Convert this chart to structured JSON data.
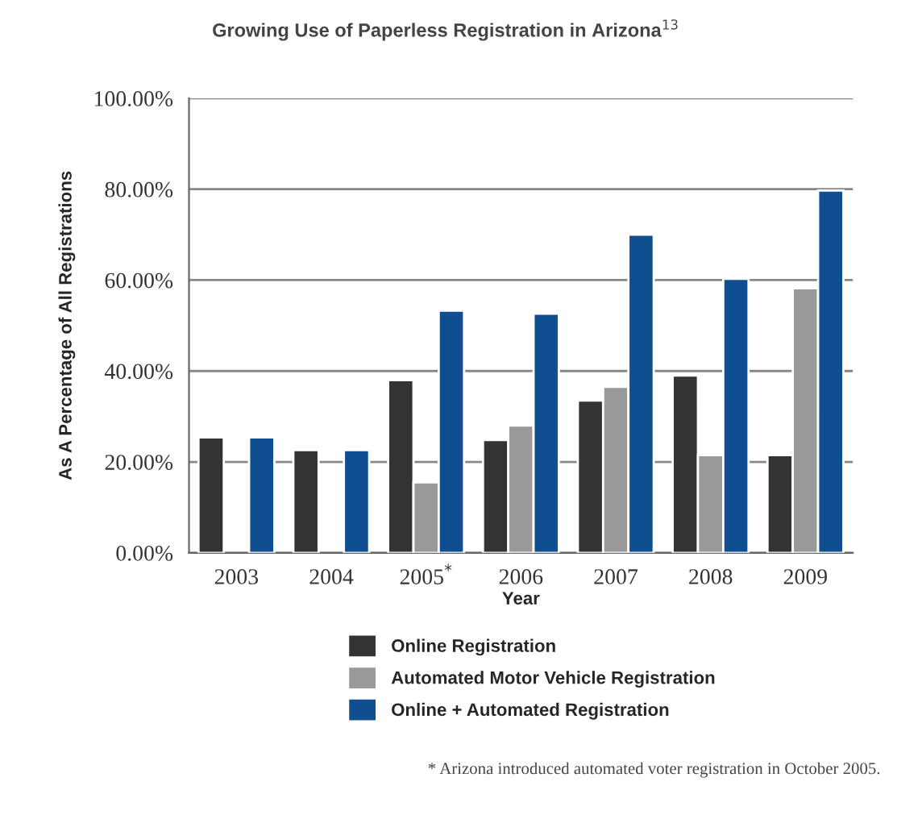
{
  "chart_data": {
    "type": "bar",
    "title": "Growing Use of Paperless Registration in Arizona$^{13}$",
    "xlabel": "Year",
    "ylabel": "As A Percentage of All Registrations",
    "categories": [
      "2003",
      "2004",
      "2005$^{*}$",
      "2006",
      "2007",
      "2008",
      "2009"
    ],
    "series": [
      {
        "name": "Online Registration",
        "color": "#333333",
        "values": [
          25.4,
          22.6,
          38,
          24.8,
          33.5,
          39,
          21.5
        ]
      },
      {
        "name": "Automated Motor Vehicle Registration",
        "color": "#999999",
        "values": [
          null,
          null,
          15.5,
          28,
          36.5,
          21.5,
          58.2
        ]
      },
      {
        "name": "Online + Automated Registration",
        "color": "#0f4f91",
        "values": [
          25.4,
          22.6,
          53.3,
          52.6,
          70,
          60.3,
          79.7
        ]
      }
    ],
    "ylim": [
      0,
      100
    ],
    "yticks": [
      {
        "value": 0,
        "label": "0.00%"
      },
      {
        "value": 20,
        "label": "20.00%"
      },
      {
        "value": 40,
        "label": "40.00%"
      },
      {
        "value": 60,
        "label": "60.00%"
      },
      {
        "value": 80,
        "label": "80.00%"
      },
      {
        "value": 100,
        "label": "100.00%"
      }
    ],
    "grid": "y",
    "legend": "bottom",
    "annotations": [
      "* Arizona introduced automated voter registration in October 2005."
    ]
  }
}
